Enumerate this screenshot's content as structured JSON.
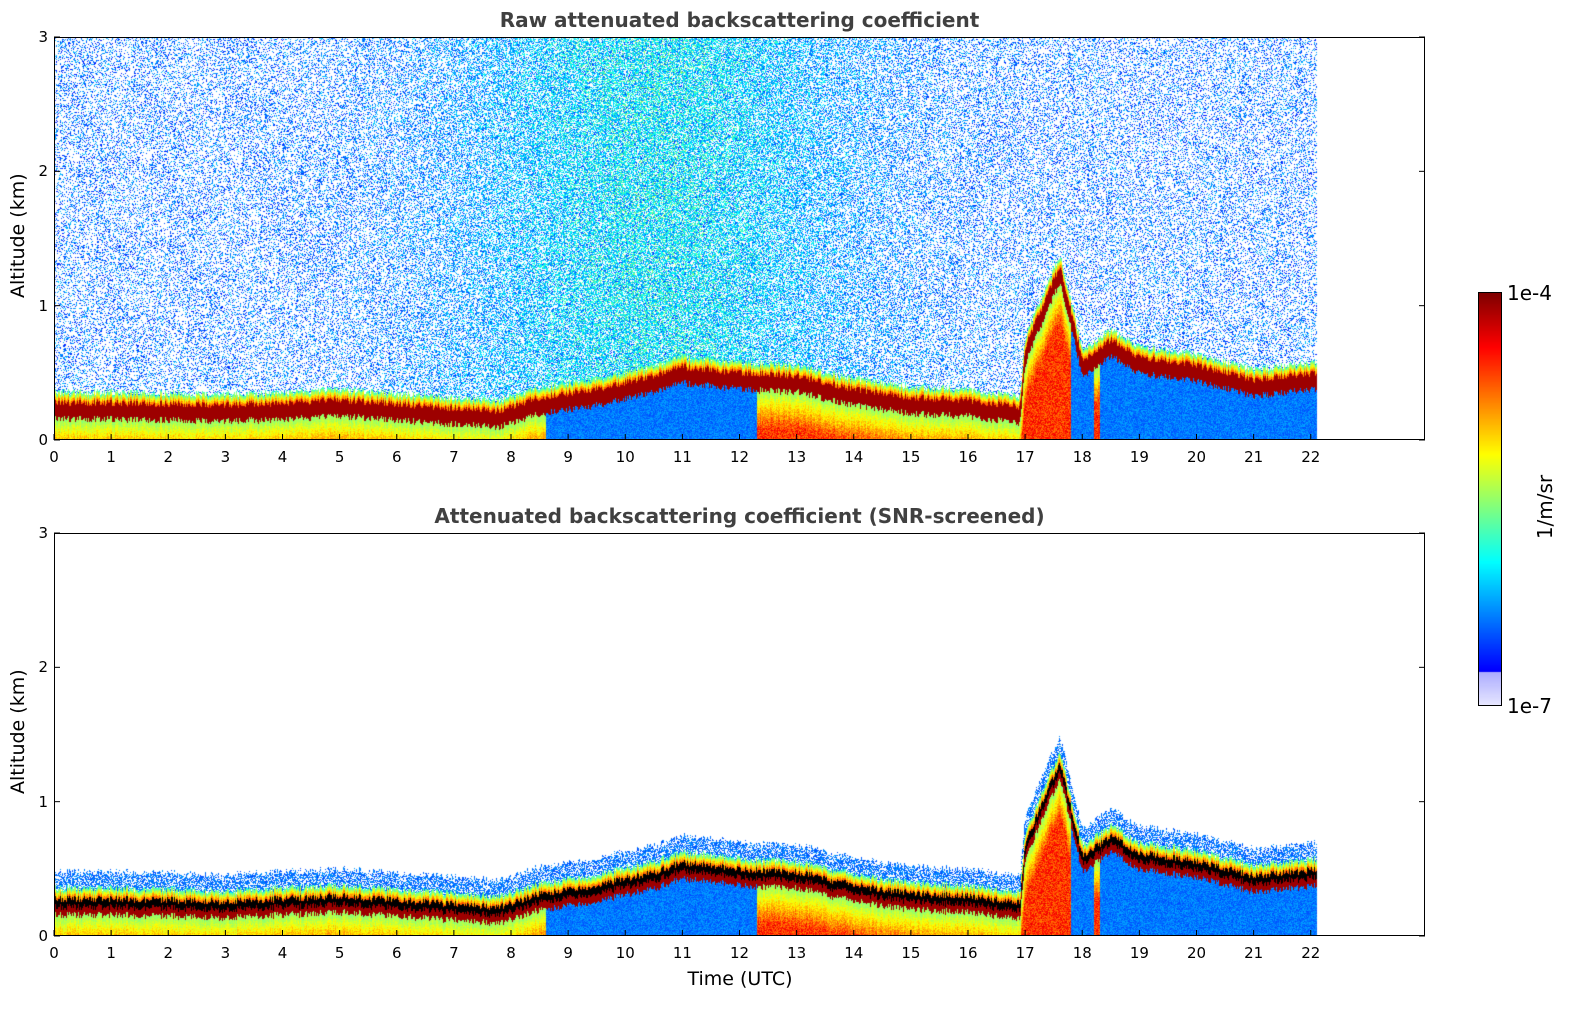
{
  "chart_data": [
    {
      "type": "heatmap",
      "title": "Raw attenuated backscattering coefficient",
      "xlabel": "",
      "ylabel": "Altitude (km)",
      "xlim": [
        0,
        24
      ],
      "ylim": [
        0,
        3
      ],
      "xticks": [
        "0",
        "1",
        "2",
        "3",
        "4",
        "5",
        "6",
        "7",
        "8",
        "9",
        "10",
        "11",
        "12",
        "13",
        "14",
        "15",
        "16",
        "17",
        "18",
        "19",
        "20",
        "21",
        "22"
      ],
      "yticks": [
        "0",
        "1",
        "2",
        "3"
      ],
      "data_end_time": 22.1,
      "boundary_layer_top_km": [
        [
          0,
          0.28
        ],
        [
          1,
          0.28
        ],
        [
          2,
          0.27
        ],
        [
          3,
          0.26
        ],
        [
          4,
          0.28
        ],
        [
          5,
          0.3
        ],
        [
          6,
          0.27
        ],
        [
          7,
          0.24
        ],
        [
          7.8,
          0.22
        ],
        [
          8.5,
          0.32
        ],
        [
          9.5,
          0.38
        ],
        [
          10.5,
          0.48
        ],
        [
          11,
          0.55
        ],
        [
          12,
          0.5
        ],
        [
          13,
          0.48
        ],
        [
          14,
          0.38
        ],
        [
          15,
          0.32
        ],
        [
          16,
          0.3
        ],
        [
          16.9,
          0.25
        ],
        [
          17,
          0.7
        ],
        [
          17.6,
          1.3
        ],
        [
          18,
          0.6
        ],
        [
          18.5,
          0.75
        ],
        [
          19,
          0.62
        ],
        [
          20,
          0.56
        ],
        [
          21,
          0.45
        ],
        [
          22.1,
          0.5
        ]
      ],
      "colorbar": {
        "label": "1/m/sr",
        "min": "1e-7",
        "max": "1e-4"
      }
    },
    {
      "type": "heatmap",
      "title": "Attenuated backscattering coefficient (SNR-screened)",
      "xlabel": "Time (UTC)",
      "ylabel": "Altitude (km)",
      "xlim": [
        0,
        24
      ],
      "ylim": [
        0,
        3
      ],
      "xticks": [
        "0",
        "1",
        "2",
        "3",
        "4",
        "5",
        "6",
        "7",
        "8",
        "9",
        "10",
        "11",
        "12",
        "13",
        "14",
        "15",
        "16",
        "17",
        "18",
        "19",
        "20",
        "21",
        "22"
      ],
      "yticks": [
        "0",
        "1",
        "2",
        "3"
      ],
      "data_end_time": 22.1,
      "colorbar": {
        "label": "1/m/sr",
        "min": "1e-7",
        "max": "1e-4"
      }
    }
  ],
  "colorbar": {
    "label": "1/m/sr",
    "max_label": "1e-4",
    "min_label": "1e-7"
  }
}
